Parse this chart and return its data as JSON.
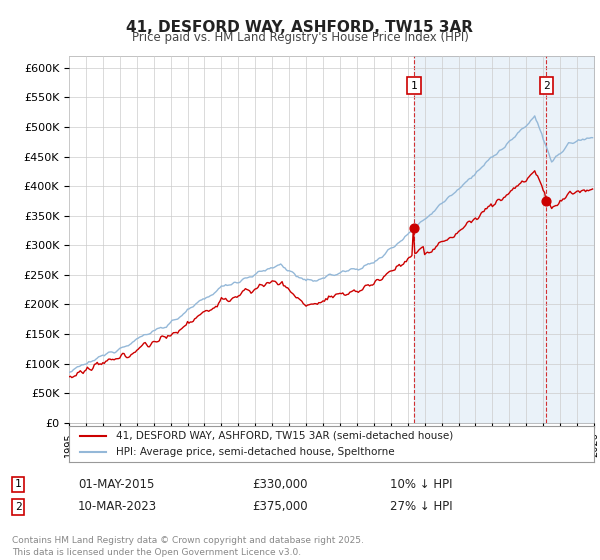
{
  "title": "41, DESFORD WAY, ASHFORD, TW15 3AR",
  "subtitle": "Price paid vs. HM Land Registry's House Price Index (HPI)",
  "ylabel_ticks": [
    "£0",
    "£50K",
    "£100K",
    "£150K",
    "£200K",
    "£250K",
    "£300K",
    "£350K",
    "£400K",
    "£450K",
    "£500K",
    "£550K",
    "£600K"
  ],
  "ytick_values": [
    0,
    50000,
    100000,
    150000,
    200000,
    250000,
    300000,
    350000,
    400000,
    450000,
    500000,
    550000,
    600000
  ],
  "ylim": [
    0,
    620000
  ],
  "hpi_color": "#94b8d8",
  "hpi_fill_color": "#ddeaf5",
  "price_color": "#cc0000",
  "vline_color": "#cc0000",
  "grid_color": "#cccccc",
  "bg_color": "#ffffff",
  "legend_label_red": "41, DESFORD WAY, ASHFORD, TW15 3AR (semi-detached house)",
  "legend_label_blue": "HPI: Average price, semi-detached house, Spelthorne",
  "annotation1_label": "1",
  "annotation1_date": "01-MAY-2015",
  "annotation1_price": "£330,000",
  "annotation1_hpi": "10% ↓ HPI",
  "annotation1_year": 2015.37,
  "annotation1_value": 330000,
  "annotation2_label": "2",
  "annotation2_date": "10-MAR-2023",
  "annotation2_price": "£375,000",
  "annotation2_hpi": "27% ↓ HPI",
  "annotation2_year": 2023.19,
  "annotation2_value": 375000,
  "footnote": "Contains HM Land Registry data © Crown copyright and database right 2025.\nThis data is licensed under the Open Government Licence v3.0.",
  "xstart_year": 1995,
  "xend_year": 2026
}
